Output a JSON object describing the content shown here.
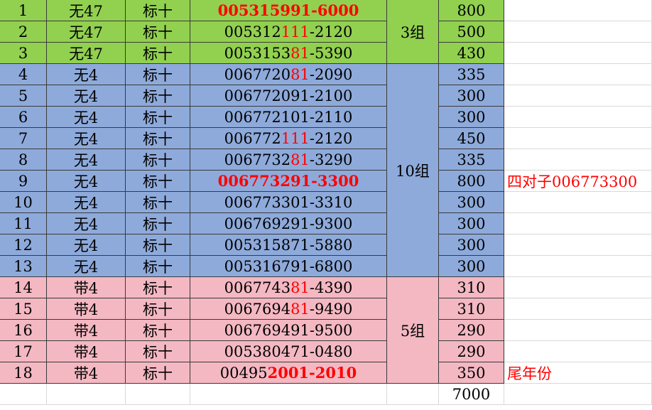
{
  "groups": [
    {
      "label": "3组",
      "span": 3,
      "color": "#92d050"
    },
    {
      "label": "10组",
      "span": 10,
      "color": "#8eaadb"
    },
    {
      "label": "5组",
      "span": 5,
      "color": "#f4b8c2"
    }
  ],
  "rows": [
    {
      "no": 1,
      "type": "无47",
      "mark": "标十",
      "serial": [
        {
          "text": "005315991-6000",
          "red": true,
          "bold": true
        }
      ],
      "amount": 800
    },
    {
      "no": 2,
      "type": "无47",
      "mark": "标十",
      "serial": [
        {
          "text": "005312"
        },
        {
          "text": "111",
          "red": true
        },
        {
          "text": "-2120"
        }
      ],
      "amount": 500
    },
    {
      "no": 3,
      "type": "无47",
      "mark": "标十",
      "serial": [
        {
          "text": "0053153"
        },
        {
          "text": "81",
          "red": true
        },
        {
          "text": "-5390"
        }
      ],
      "amount": 430
    },
    {
      "no": 4,
      "type": "无4",
      "mark": "标十",
      "serial": [
        {
          "text": "0067720"
        },
        {
          "text": "81",
          "red": true
        },
        {
          "text": "-2090"
        }
      ],
      "amount": 335
    },
    {
      "no": 5,
      "type": "无4",
      "mark": "标十",
      "serial": [
        {
          "text": "006772091-2100"
        }
      ],
      "amount": 300
    },
    {
      "no": 6,
      "type": "无4",
      "mark": "标十",
      "serial": [
        {
          "text": "006772101-2110"
        }
      ],
      "amount": 300
    },
    {
      "no": 7,
      "type": "无4",
      "mark": "标十",
      "serial": [
        {
          "text": "006772"
        },
        {
          "text": "111",
          "red": true
        },
        {
          "text": "-2120"
        }
      ],
      "amount": 450
    },
    {
      "no": 8,
      "type": "无4",
      "mark": "标十",
      "serial": [
        {
          "text": "0067732"
        },
        {
          "text": "81",
          "red": true
        },
        {
          "text": "-3290"
        }
      ],
      "amount": 335
    },
    {
      "no": 9,
      "type": "无4",
      "mark": "标十",
      "serial": [
        {
          "text": "006773291-3300",
          "red": true,
          "bold": true
        }
      ],
      "amount": 800,
      "note": "四对子006773300"
    },
    {
      "no": 10,
      "type": "无4",
      "mark": "标十",
      "serial": [
        {
          "text": "006773301-3310"
        }
      ],
      "amount": 300
    },
    {
      "no": 11,
      "type": "无4",
      "mark": "标十",
      "serial": [
        {
          "text": "006769291-9300"
        }
      ],
      "amount": 300
    },
    {
      "no": 12,
      "type": "无4",
      "mark": "标十",
      "serial": [
        {
          "text": "005315871-5880"
        }
      ],
      "amount": 300
    },
    {
      "no": 13,
      "type": "无4",
      "mark": "标十",
      "serial": [
        {
          "text": "005316791-6800"
        }
      ],
      "amount": 300
    },
    {
      "no": 14,
      "type": "带4",
      "mark": "标十",
      "serial": [
        {
          "text": "0067743"
        },
        {
          "text": "81",
          "red": true
        },
        {
          "text": "-4390"
        }
      ],
      "amount": 310
    },
    {
      "no": 15,
      "type": "带4",
      "mark": "标十",
      "serial": [
        {
          "text": "0067694"
        },
        {
          "text": "81",
          "red": true
        },
        {
          "text": "-9490"
        }
      ],
      "amount": 310
    },
    {
      "no": 16,
      "type": "带4",
      "mark": "标十",
      "serial": [
        {
          "text": "006769491-9500"
        }
      ],
      "amount": 290
    },
    {
      "no": 17,
      "type": "带4",
      "mark": "标十",
      "serial": [
        {
          "text": "005380471-0480"
        }
      ],
      "amount": 290
    },
    {
      "no": 18,
      "type": "带4",
      "mark": "标十",
      "serial": [
        {
          "text": "00495"
        },
        {
          "text": "2001-2010",
          "red": true,
          "bold": true
        }
      ],
      "amount": 350,
      "note": "尾年份"
    }
  ],
  "total": 7000
}
